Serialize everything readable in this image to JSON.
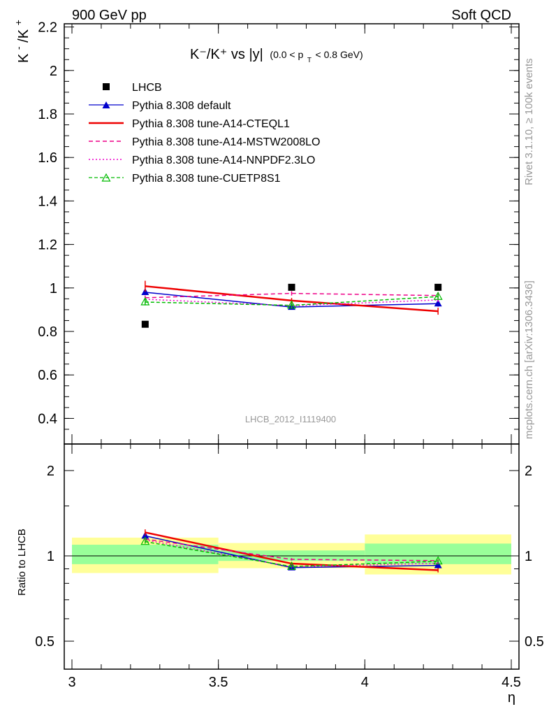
{
  "header": {
    "left": "900 GeV pp",
    "right": "Soft QCD"
  },
  "side_text": {
    "top": "Rivet 3.1.10, ≥ 100k events",
    "bottom": "mcplots.cern.ch [arXiv:1306.3436]"
  },
  "watermark": "LHCB_2012_I1119400",
  "title": {
    "main": "K⁻/K⁺ vs |y|",
    "sub": "(0.0 < p",
    "sub_t": "T",
    "sub_end": " < 0.8 GeV)"
  },
  "ylabel": {
    "k": "K",
    "minus": "-",
    "slash": "/K",
    "plus": "+"
  },
  "ratio_ylabel": "Ratio to LHCB",
  "xlabel": "η",
  "chart_data": {
    "type": "line",
    "x": [
      3.25,
      3.75,
      4.25
    ],
    "xlim": [
      3.0,
      4.5
    ],
    "ylim": [
      0.3,
      2.2
    ],
    "ratio_ylim": [
      0.38,
      2.3
    ],
    "ratio_log": true,
    "x_ticks": [
      "3",
      "3.5",
      "4",
      "4.5"
    ],
    "y_ticks": [
      "0.4",
      "0.6",
      "0.8",
      "1",
      "1.2",
      "1.4",
      "1.6",
      "1.8",
      "2",
      "2.2"
    ],
    "ratio_ticks": [
      "0.5",
      "1",
      "2"
    ],
    "grid": false,
    "legend_position": "top-left",
    "data": {
      "name": "LHCB",
      "values": [
        0.833,
        1.003,
        1.003
      ],
      "band_inner": [
        [
          0.935,
          1.095
        ],
        [
          0.96,
          1.045
        ],
        [
          0.935,
          1.105
        ]
      ],
      "band_outer": [
        [
          0.87,
          1.16
        ],
        [
          0.905,
          1.11
        ],
        [
          0.86,
          1.19
        ]
      ]
    },
    "series": [
      {
        "name": "Pythia 8.308 default",
        "color": "#0000cc",
        "dash": "",
        "marker": "triangle",
        "values": [
          0.98,
          0.912,
          0.928
        ],
        "errors": [
          0.012,
          0.01,
          0.014
        ]
      },
      {
        "name": "Pythia 8.308 tune-A14-CTEQL1",
        "color": "#ee0000",
        "dash": "",
        "marker": "none",
        "values": [
          1.008,
          0.942,
          0.893
        ],
        "errors": [
          0.025,
          0.012,
          0.016
        ]
      },
      {
        "name": "Pythia 8.308 tune-A14-MSTW2008LO",
        "color": "#ee0088",
        "dash": "6,4",
        "marker": "none",
        "values": [
          0.955,
          0.975,
          0.965
        ],
        "errors": [
          0.01,
          0.01,
          0.01
        ]
      },
      {
        "name": "Pythia 8.308 tune-A14-NNPDF2.3LO",
        "color": "#ee00cc",
        "dash": "2,3",
        "marker": "none",
        "values": [
          0.948,
          0.918,
          0.945
        ],
        "errors": [
          0.01,
          0.01,
          0.01
        ]
      },
      {
        "name": "Pythia 8.308 tune-CUETP8S1",
        "color": "#00bb00",
        "dash": "5,3",
        "marker": "open-triangle",
        "values": [
          0.935,
          0.92,
          0.96
        ],
        "errors": [
          0.015,
          0.01,
          0.01
        ]
      }
    ]
  }
}
